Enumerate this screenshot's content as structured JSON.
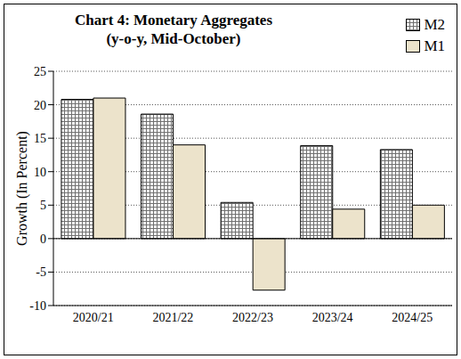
{
  "chart_data": {
    "type": "bar",
    "title": "Chart 4: Monetary Aggregates",
    "subtitle": "(y-o-y, Mid-October)",
    "y_label": "Growth (In Percent)",
    "categories": [
      "2020/21",
      "2021/22",
      "2022/23",
      "2023/24",
      "2024/25"
    ],
    "series": [
      {
        "name": "M2",
        "color": "#707070",
        "marker": "grid",
        "values": [
          20.8,
          18.6,
          5.4,
          13.9,
          13.3
        ]
      },
      {
        "name": "M1",
        "color": "#ece3cb",
        "values": [
          21.0,
          14.0,
          -7.7,
          4.4,
          5.0
        ]
      }
    ],
    "ylim": [
      -10,
      25
    ],
    "yticks": [
      -10,
      -5,
      0,
      5,
      10,
      15,
      20,
      25
    ],
    "grid": true,
    "legend": "upper right"
  }
}
